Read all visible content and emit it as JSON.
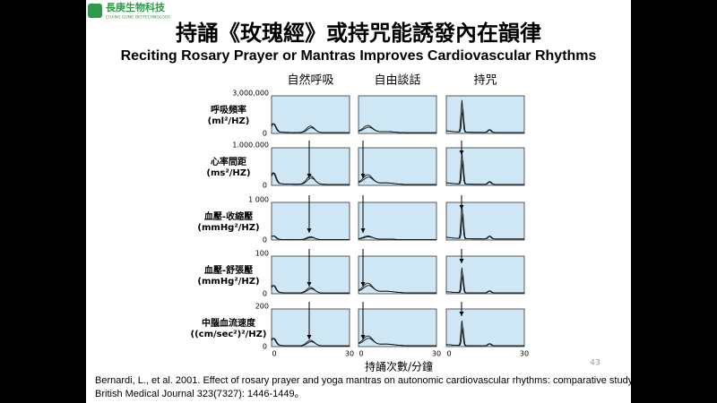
{
  "header": {
    "logo_name": "長庚生物科技",
    "logo_sub": "CHANG GUNG BIOTECHNOLOGY",
    "title": "持誦《玫瑰經》或持咒能誘發內在韻律",
    "subtitle": "Reciting Rosary Prayer or Mantras Improves Cardiovascular Rhythms"
  },
  "figure": {
    "columns": [
      "自然呼吸",
      "自由談話",
      "持咒"
    ],
    "rows": [
      {
        "label": "呼吸頻率",
        "unit": "(ml²/HZ)",
        "top_label": "3,000,000"
      },
      {
        "label": "心率間距",
        "unit": "(ms²/HZ)",
        "top_label": "1.000.000"
      },
      {
        "label": "血壓-收縮壓",
        "unit": "(mmHg²/HZ)",
        "top_label": "1 000"
      },
      {
        "label": "血壓-舒張壓",
        "unit": "(mmHg²/HZ)",
        "top_label": "100"
      },
      {
        "label": "中腦血流速度",
        "unit": "((cm/sec²)²/HZ)",
        "top_label": "200"
      }
    ],
    "zero_label": "0",
    "x_ticks": [
      "0",
      "30"
    ],
    "x_label": "持誦次數/分鐘"
  },
  "page_number": "43",
  "citation": [
    "Bernardi, L., et al. 2001. Effect of rosary prayer and yoga mantras on autonomic cardiovascular rhythms: comparative study.",
    "British Medical Journal 323(7327): 1446-1449。"
  ]
}
